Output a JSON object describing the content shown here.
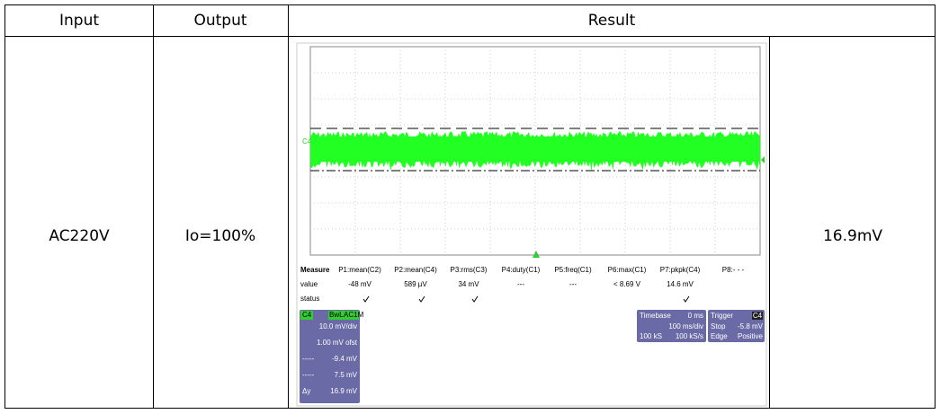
{
  "table": {
    "header": [
      "Input",
      "Output",
      "Result"
    ],
    "rows": [
      [
        "AC220V",
        "Io=100%",
        "16.9mV"
      ]
    ]
  },
  "scope": {
    "channel_label": "C4",
    "measure": {
      "headers": [
        "Measure",
        "P1:mean(C2)",
        "P2:mean(C4)",
        "P3:rms(C3)",
        "P4:duty(C1)",
        "P5:freq(C1)",
        "P6:max(C1)",
        "P7:pkpk(C4)",
        "P8:- - -"
      ],
      "values": [
        "value",
        "-48 mV",
        "589 µV",
        "34 mV",
        "---",
        "---",
        "< 8.69 V",
        "14.6 mV"
      ],
      "status": "status"
    },
    "channel_box": {
      "name": "C4",
      "bandwidth": "BwL",
      "coupling": "AC1M",
      "lines": [
        [
          "",
          "10.0 mV/div"
        ],
        [
          "",
          "1.00 mV ofst"
        ],
        [
          "-----",
          "-9.4 mV"
        ],
        [
          "-----",
          "7.5 mV"
        ],
        [
          "Δy",
          "16.9 mV"
        ]
      ]
    },
    "timebase": {
      "title": "Timebase",
      "delay": "0 ms",
      "scale": "100 ms/div",
      "samples": "100 kS",
      "rate": "100 kS/s"
    },
    "trigger": {
      "title": "Trigger",
      "channel": "C4",
      "mode": "Stop",
      "level": "-5.8 mV",
      "type": "Edge",
      "slope": "Positive"
    }
  }
}
